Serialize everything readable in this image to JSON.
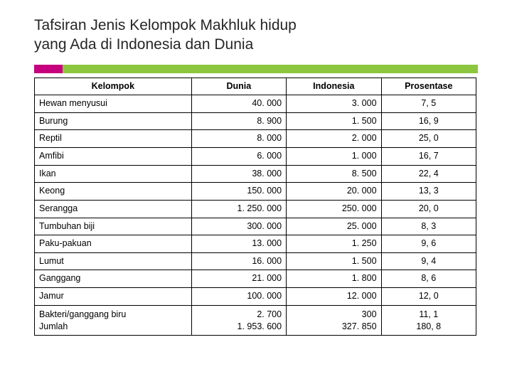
{
  "title_line1": "Tafsiran Jenis Kelompok Makhluk hidup",
  "title_line2": "yang Ada di Indonesia dan Dunia",
  "accent_colors": {
    "pink": "#c6007e",
    "green": "#8cc63f"
  },
  "table": {
    "columns": [
      "Kelompok",
      "Dunia",
      "Indonesia",
      "Prosentase"
    ],
    "rows": [
      {
        "kelompok": "Hewan menyusui",
        "dunia": "40. 000",
        "indonesia": "3. 000",
        "prosentase": "7, 5"
      },
      {
        "kelompok": "Burung",
        "dunia": "8. 900",
        "indonesia": "1. 500",
        "prosentase": "16, 9"
      },
      {
        "kelompok": "Reptil",
        "dunia": "8. 000",
        "indonesia": "2. 000",
        "prosentase": "25, 0"
      },
      {
        "kelompok": "Amfibi",
        "dunia": "6. 000",
        "indonesia": "1. 000",
        "prosentase": "16, 7"
      },
      {
        "kelompok": "Ikan",
        "dunia": "38. 000",
        "indonesia": "8. 500",
        "prosentase": "22, 4"
      },
      {
        "kelompok": "Keong",
        "dunia": "150. 000",
        "indonesia": "20. 000",
        "prosentase": "13, 3"
      },
      {
        "kelompok": "Serangga",
        "dunia": "1. 250. 000",
        "indonesia": "250. 000",
        "prosentase": "20, 0"
      },
      {
        "kelompok": "Tumbuhan biji",
        "dunia": "300. 000",
        "indonesia": "25. 000",
        "prosentase": "8, 3"
      },
      {
        "kelompok": "Paku-pakuan",
        "dunia": "13. 000",
        "indonesia": "1. 250",
        "prosentase": "9, 6"
      },
      {
        "kelompok": "Lumut",
        "dunia": "16. 000",
        "indonesia": "1. 500",
        "prosentase": "9, 4"
      },
      {
        "kelompok": "Ganggang",
        "dunia": "21. 000",
        "indonesia": "1. 800",
        "prosentase": "8, 6"
      },
      {
        "kelompok": "Jamur",
        "dunia": "100. 000",
        "indonesia": "12. 000",
        "prosentase": "12, 0"
      }
    ],
    "last_row": {
      "kel_line1": "Bakteri/ganggang biru",
      "kel_line2": "Jumlah",
      "dunia_line1": "2. 700",
      "dunia_line2": "1. 953. 600",
      "indo_line1": "300",
      "indo_line2": "327. 850",
      "pros_line1": "11, 1",
      "pros_line2": "180, 8"
    }
  }
}
